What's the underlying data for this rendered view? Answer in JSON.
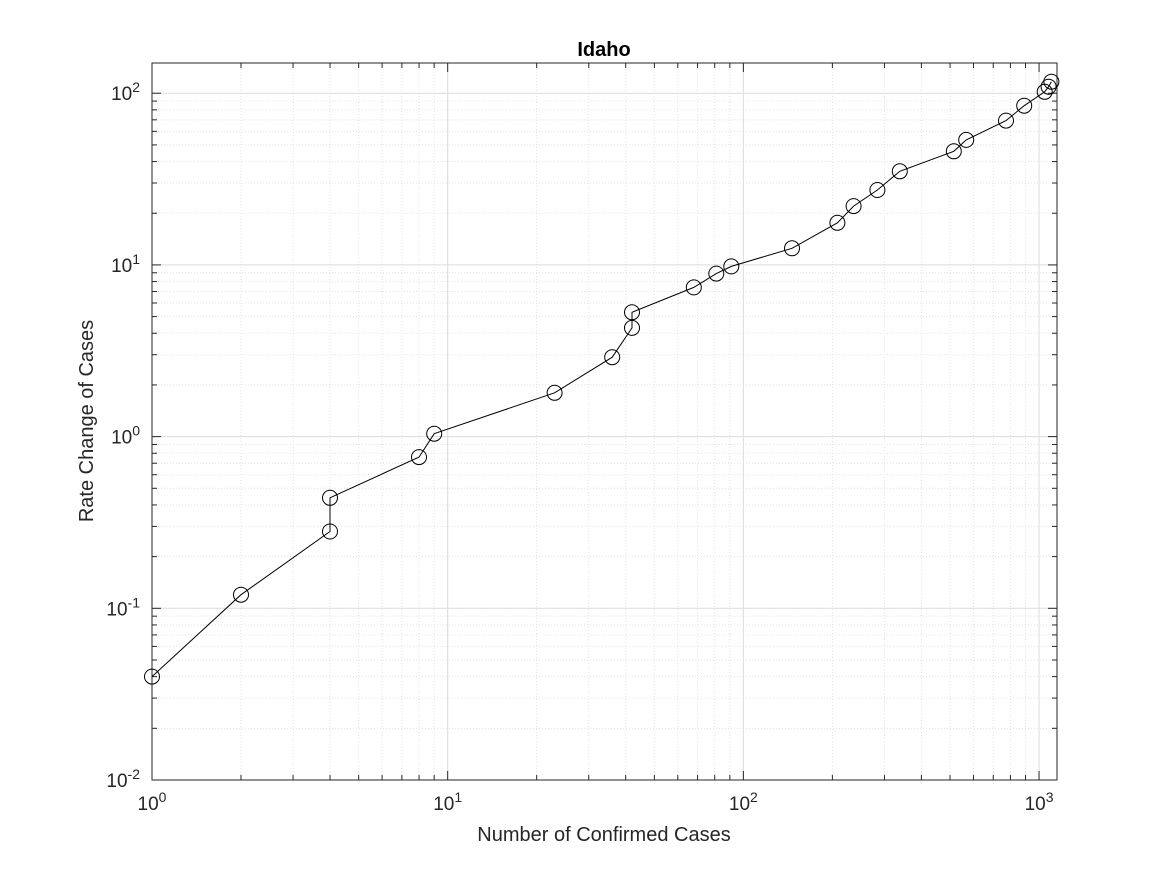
{
  "chart_data": {
    "type": "line",
    "title": "Idaho",
    "xlabel": "Number of Confirmed Cases",
    "ylabel": "Rate Change of Cases",
    "xscale": "log",
    "yscale": "log",
    "xlim": [
      1,
      1150
    ],
    "ylim": [
      0.01,
      150
    ],
    "grid": "major and minor",
    "marker": "open circle",
    "line_color": "#000000",
    "x_ticks": [
      1,
      10,
      100,
      1000
    ],
    "y_ticks": [
      0.01,
      0.1,
      1,
      10,
      100
    ],
    "x_tick_labels": [
      {
        "base": "10",
        "exp": "0"
      },
      {
        "base": "10",
        "exp": "1"
      },
      {
        "base": "10",
        "exp": "2"
      },
      {
        "base": "10",
        "exp": "3"
      }
    ],
    "y_tick_labels": [
      {
        "base": "10",
        "exp": "-2"
      },
      {
        "base": "10",
        "exp": "-1"
      },
      {
        "base": "10",
        "exp": "0"
      },
      {
        "base": "10",
        "exp": "1"
      },
      {
        "base": "10",
        "exp": "2"
      }
    ],
    "x": [
      1,
      2,
      4,
      4,
      8,
      9,
      23,
      36,
      42,
      42,
      68,
      81,
      91,
      146,
      208,
      236,
      284,
      338,
      515,
      567,
      773,
      891,
      1045,
      1077,
      1101
    ],
    "y": [
      0.04,
      0.12,
      0.28,
      0.44,
      0.76,
      1.04,
      1.8,
      2.9,
      4.3,
      5.3,
      7.4,
      8.9,
      9.8,
      12.5,
      17.6,
      22.0,
      27.3,
      35.1,
      45.9,
      53.5,
      69.3,
      84.6,
      102.0,
      109.2,
      116.7
    ]
  }
}
